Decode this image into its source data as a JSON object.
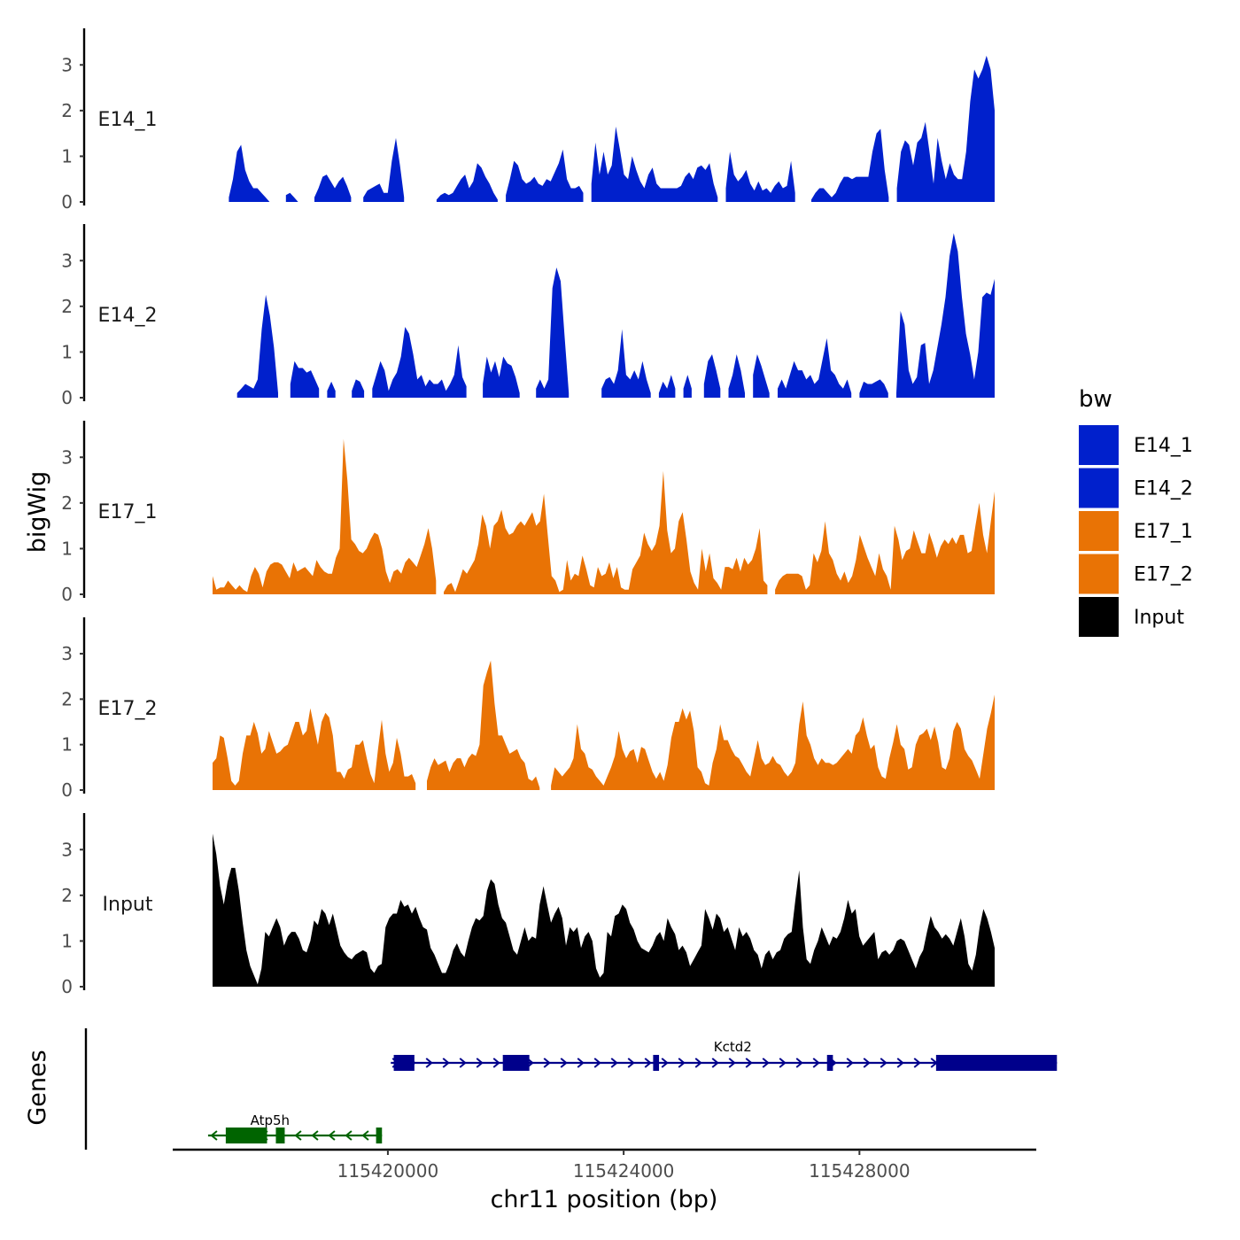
{
  "chart_data": {
    "type": "area",
    "x_axis": {
      "label": "chr11 position (bp)",
      "ticks": [
        115420000,
        115424000,
        115428000
      ],
      "tick_labels": [
        "115420000",
        "115424000",
        "115428000"
      ],
      "range": [
        115416350,
        115431000
      ],
      "data_range": [
        115417000,
        115430100
      ]
    },
    "y_axis": {
      "label": "bigWig",
      "range": [
        0,
        3.8
      ],
      "ticks": [
        0,
        1,
        2,
        3
      ],
      "tick_labels": [
        "0",
        "1",
        "2",
        "3"
      ]
    },
    "series": [
      {
        "name": "E14_1",
        "color": "#0020CC",
        "values": [
          null,
          null,
          null,
          null,
          0.1,
          0.5,
          1.1,
          1.25,
          0.7,
          0.45,
          0.3,
          0.3,
          0.2,
          0.1,
          0,
          null,
          null,
          null,
          0.15,
          0.2,
          0.1,
          0,
          null,
          null,
          null,
          0.1,
          0.3,
          0.55,
          0.6,
          0.45,
          0.3,
          0.45,
          0.55,
          0.35,
          0.1,
          null,
          null,
          0.1,
          0.25,
          0.3,
          0.35,
          0.4,
          0.2,
          0.2,
          0.9,
          1.4,
          0.8,
          0.1,
          null,
          null,
          null,
          null,
          null,
          null,
          null,
          0.05,
          0.15,
          0.2,
          0.15,
          0.2,
          0.35,
          0.5,
          0.6,
          0.3,
          0.45,
          0.85,
          0.75,
          0.55,
          0.4,
          0.2,
          0.05,
          null,
          0.15,
          0.5,
          0.9,
          0.8,
          0.5,
          0.4,
          0.45,
          0.55,
          0.4,
          0.35,
          0.5,
          0.45,
          0.65,
          0.85,
          1.15,
          0.5,
          0.3,
          0.3,
          0.35,
          0.2,
          null,
          0.4,
          1.3,
          0.6,
          1.1,
          0.6,
          0.8,
          1.65,
          1.15,
          0.6,
          0.5,
          1.0,
          0.7,
          0.45,
          0.3,
          0.6,
          0.75,
          0.4,
          0.3,
          0.3,
          0.3,
          0.3,
          0.3,
          0.35,
          0.55,
          0.65,
          0.5,
          0.75,
          0.8,
          0.7,
          0.85,
          0.4,
          0.1,
          null,
          0.3,
          1.1,
          0.6,
          0.45,
          0.55,
          0.7,
          0.4,
          0.25,
          0.45,
          0.25,
          0.3,
          0.2,
          0.35,
          0.45,
          0.3,
          0.35,
          0.9,
          0.2,
          null,
          null,
          null,
          0.05,
          0.2,
          0.3,
          0.3,
          0.2,
          0.1,
          0.2,
          0.4,
          0.55,
          0.55,
          0.5,
          0.55,
          0.55,
          0.55,
          0.55,
          1.1,
          1.5,
          1.6,
          0.7,
          0.1,
          null,
          0.3,
          1.1,
          1.35,
          1.25,
          0.8,
          1.3,
          1.4,
          1.75,
          1.1,
          0.4,
          1.4,
          0.9,
          0.5,
          0.85,
          0.6,
          0.5,
          0.5,
          1.1,
          2.2,
          2.9,
          2.7,
          2.9,
          3.2,
          2.9,
          2.0
        ]
      },
      {
        "name": "E14_2",
        "color": "#0020CC",
        "values": [
          null,
          null,
          null,
          null,
          null,
          null,
          0.1,
          0.2,
          0.3,
          0.25,
          0.2,
          0.4,
          1.5,
          2.25,
          1.8,
          1.1,
          0.1,
          null,
          null,
          0.3,
          0.8,
          0.65,
          0.65,
          0.55,
          0.6,
          0.4,
          0.2,
          null,
          0.15,
          0.35,
          0.15,
          null,
          null,
          null,
          0.15,
          0.4,
          0.35,
          0.15,
          null,
          0.2,
          0.5,
          0.8,
          0.6,
          0.15,
          0.4,
          0.55,
          0.9,
          1.55,
          1.4,
          0.95,
          0.4,
          0.5,
          0.25,
          0.4,
          0.3,
          0.3,
          0.4,
          0.15,
          0.3,
          0.5,
          1.15,
          0.45,
          0.25,
          null,
          null,
          null,
          0.3,
          0.9,
          0.55,
          0.8,
          0.45,
          0.9,
          0.75,
          0.7,
          0.45,
          0.1,
          null,
          null,
          null,
          0.2,
          0.4,
          0.2,
          0.4,
          2.4,
          2.85,
          2.55,
          1.3,
          0.1,
          null,
          null,
          null,
          null,
          null,
          null,
          null,
          0.2,
          0.4,
          0.45,
          0.3,
          0.6,
          1.5,
          0.5,
          0.4,
          0.6,
          0.4,
          0.8,
          0.4,
          0.1,
          null,
          0.1,
          0.35,
          0.2,
          0.5,
          0.2,
          null,
          0.2,
          0.5,
          0.2,
          null,
          null,
          0.3,
          0.8,
          0.95,
          0.6,
          0.2,
          null,
          0.2,
          0.5,
          0.95,
          0.6,
          0.1,
          null,
          0.5,
          0.95,
          0.7,
          0.4,
          0.1,
          null,
          0.2,
          0.4,
          0.2,
          0.5,
          0.8,
          0.6,
          0.6,
          0.4,
          0.5,
          0.3,
          0.4,
          0.85,
          1.3,
          0.6,
          0.5,
          0.3,
          0.2,
          0.4,
          0.1,
          null,
          0.1,
          0.35,
          0.3,
          0.3,
          0.35,
          0.4,
          0.3,
          0.1,
          null,
          0.1,
          1.9,
          1.6,
          0.6,
          0.3,
          0.45,
          1.15,
          1.2,
          0.3,
          0.6,
          1.1,
          1.6,
          2.2,
          3.1,
          3.6,
          3.2,
          2.2,
          1.4,
          0.95,
          0.4,
          1.0,
          2.2,
          2.3,
          2.25,
          2.6
        ]
      },
      {
        "name": "E17_1",
        "color": "#E97305",
        "values": [
          0.4,
          0.1,
          0.15,
          0.15,
          0.3,
          0.2,
          0.1,
          0.2,
          0.1,
          0.05,
          0.4,
          0.6,
          0.45,
          0.15,
          0.5,
          0.65,
          0.7,
          0.7,
          0.65,
          0.5,
          0.35,
          0.7,
          0.5,
          0.55,
          0.6,
          0.5,
          0.4,
          0.75,
          0.6,
          0.5,
          0.45,
          0.45,
          0.8,
          1.0,
          3.4,
          2.5,
          1.2,
          1.1,
          0.95,
          0.9,
          1.0,
          1.2,
          1.35,
          1.3,
          1.0,
          0.5,
          0.25,
          0.5,
          0.55,
          0.45,
          0.7,
          0.8,
          0.7,
          0.6,
          0.85,
          1.1,
          1.45,
          1.0,
          0.3,
          null,
          0.05,
          0.2,
          0.25,
          0.05,
          0.3,
          0.55,
          0.45,
          0.6,
          0.75,
          1.1,
          1.75,
          1.5,
          1.0,
          1.5,
          1.6,
          1.85,
          1.45,
          1.3,
          1.35,
          1.5,
          1.6,
          1.5,
          1.65,
          1.8,
          1.5,
          1.6,
          2.2,
          1.3,
          0.4,
          0.3,
          0.05,
          0.1,
          0.75,
          0.3,
          0.45,
          0.4,
          0.85,
          0.55,
          0.2,
          0.15,
          0.6,
          0.4,
          0.45,
          0.7,
          0.35,
          0.6,
          0.15,
          0.1,
          0.1,
          0.55,
          0.7,
          0.85,
          1.35,
          1.1,
          0.95,
          1.1,
          1.5,
          2.7,
          1.4,
          0.9,
          1.0,
          1.6,
          1.8,
          1.2,
          0.5,
          0.25,
          0.1,
          1.0,
          0.5,
          0.9,
          0.35,
          0.25,
          0.1,
          0.6,
          0.6,
          0.55,
          0.8,
          0.5,
          0.8,
          0.65,
          0.75,
          1.0,
          1.45,
          0.3,
          0.2,
          null,
          0.1,
          0.3,
          0.4,
          0.45,
          0.45,
          0.45,
          0.45,
          0.4,
          0.1,
          0.2,
          0.9,
          0.7,
          0.95,
          1.6,
          0.9,
          0.75,
          0.45,
          0.3,
          0.5,
          0.25,
          0.4,
          0.75,
          1.3,
          1.05,
          0.8,
          0.6,
          0.4,
          0.9,
          0.55,
          0.4,
          0.1,
          1.5,
          1.2,
          0.75,
          0.95,
          1.0,
          1.4,
          1.15,
          0.9,
          0.9,
          1.35,
          1.1,
          0.8,
          1.05,
          1.2,
          1.1,
          1.25,
          1.1,
          1.3,
          1.3,
          0.9,
          0.95,
          1.5,
          2.0,
          1.3,
          0.9,
          1.6,
          2.25
        ]
      },
      {
        "name": "E17_2",
        "color": "#E97305",
        "values": [
          0.6,
          0.7,
          1.2,
          1.15,
          0.7,
          0.2,
          0.1,
          0.2,
          0.8,
          1.2,
          1.2,
          1.5,
          1.25,
          0.8,
          0.9,
          1.3,
          1.05,
          0.8,
          0.85,
          0.95,
          1.0,
          1.25,
          1.5,
          1.5,
          1.2,
          1.3,
          1.8,
          1.4,
          1.0,
          1.5,
          1.7,
          1.6,
          1.2,
          0.4,
          0.4,
          0.25,
          0.45,
          0.5,
          1.0,
          1.0,
          1.1,
          0.7,
          0.35,
          0.15,
          0.9,
          1.55,
          0.8,
          0.4,
          0.6,
          1.15,
          0.8,
          0.3,
          0.3,
          0.35,
          0.15,
          null,
          null,
          0.2,
          0.5,
          0.7,
          0.55,
          0.6,
          0.65,
          0.4,
          0.6,
          0.7,
          0.7,
          0.5,
          0.7,
          0.8,
          0.75,
          1.0,
          2.3,
          2.6,
          2.85,
          1.9,
          1.2,
          1.2,
          1.0,
          0.8,
          0.85,
          0.9,
          0.7,
          0.6,
          0.25,
          0.2,
          0.3,
          0.05,
          null,
          null,
          0.1,
          0.5,
          0.4,
          0.3,
          0.4,
          0.5,
          0.7,
          1.45,
          0.9,
          0.8,
          0.5,
          0.45,
          0.3,
          0.2,
          0.1,
          0.3,
          0.5,
          0.75,
          1.3,
          0.9,
          0.7,
          0.85,
          0.9,
          0.6,
          0.95,
          0.9,
          0.65,
          0.4,
          0.25,
          0.4,
          0.2,
          0.55,
          1.15,
          1.5,
          1.5,
          1.8,
          1.55,
          1.75,
          1.3,
          0.5,
          0.4,
          0.15,
          0.1,
          0.6,
          0.9,
          1.45,
          1.1,
          1.1,
          0.9,
          0.75,
          0.7,
          0.55,
          0.4,
          0.3,
          0.7,
          1.1,
          0.7,
          0.55,
          0.6,
          0.75,
          0.6,
          0.55,
          0.4,
          0.3,
          0.4,
          0.6,
          1.45,
          1.95,
          1.2,
          1.0,
          0.7,
          0.55,
          0.7,
          0.6,
          0.6,
          0.55,
          0.6,
          0.7,
          0.8,
          0.9,
          0.8,
          1.2,
          1.3,
          1.6,
          1.2,
          0.9,
          1.0,
          0.5,
          0.3,
          0.25,
          0.7,
          1.05,
          1.45,
          1.0,
          0.9,
          0.45,
          0.5,
          1.0,
          1.2,
          1.25,
          1.35,
          1.1,
          1.4,
          1.05,
          0.5,
          0.45,
          0.7,
          1.3,
          1.5,
          1.35,
          0.9,
          0.75,
          0.65,
          0.45,
          0.25,
          0.8,
          1.35,
          1.7,
          2.1
        ]
      },
      {
        "name": "Input",
        "color": "#000000",
        "values": [
          3.35,
          2.9,
          2.2,
          1.8,
          2.3,
          2.6,
          2.6,
          2.1,
          1.4,
          0.8,
          0.45,
          0.25,
          0.05,
          0.4,
          1.2,
          1.1,
          1.3,
          1.5,
          1.3,
          0.9,
          1.1,
          1.2,
          1.2,
          1.05,
          0.8,
          0.75,
          1.0,
          1.45,
          1.35,
          1.7,
          1.6,
          1.35,
          1.6,
          1.25,
          0.9,
          0.75,
          0.65,
          0.6,
          0.7,
          0.75,
          0.8,
          0.75,
          0.4,
          0.3,
          0.45,
          0.5,
          1.3,
          1.5,
          1.6,
          1.6,
          1.9,
          1.75,
          1.8,
          1.6,
          1.75,
          1.5,
          1.3,
          1.25,
          0.85,
          0.7,
          0.5,
          0.3,
          0.3,
          0.5,
          0.8,
          0.95,
          0.75,
          0.65,
          1.0,
          1.3,
          1.5,
          1.45,
          1.55,
          2.1,
          2.35,
          2.25,
          1.8,
          1.5,
          1.4,
          1.1,
          0.8,
          0.7,
          1.0,
          1.3,
          1.0,
          1.1,
          1.05,
          1.8,
          2.2,
          1.8,
          1.4,
          1.6,
          1.75,
          1.5,
          0.9,
          1.3,
          1.2,
          1.3,
          0.85,
          1.1,
          1.2,
          1.0,
          0.4,
          0.2,
          0.3,
          1.2,
          1.1,
          1.55,
          1.6,
          1.8,
          1.7,
          1.4,
          1.25,
          1.0,
          0.85,
          0.8,
          0.75,
          0.9,
          1.1,
          1.2,
          1.0,
          1.5,
          1.3,
          1.15,
          0.8,
          0.9,
          0.75,
          0.45,
          0.6,
          0.75,
          0.9,
          1.7,
          1.5,
          1.25,
          1.6,
          1.5,
          1.2,
          1.3,
          1.05,
          0.8,
          1.3,
          1.1,
          1.2,
          1.05,
          0.8,
          0.7,
          0.4,
          0.7,
          0.8,
          0.6,
          0.75,
          0.8,
          1.05,
          1.15,
          1.2,
          1.9,
          2.55,
          1.3,
          0.6,
          0.5,
          0.8,
          1.0,
          1.3,
          1.1,
          0.9,
          1.1,
          1.05,
          1.2,
          1.5,
          1.9,
          1.6,
          1.7,
          1.1,
          0.9,
          1.0,
          1.1,
          1.2,
          0.6,
          0.75,
          0.8,
          0.7,
          0.8,
          1.0,
          1.05,
          1.0,
          0.8,
          0.6,
          0.4,
          0.65,
          0.8,
          1.2,
          1.55,
          1.3,
          1.2,
          1.05,
          1.15,
          1.05,
          0.9,
          1.2,
          1.5,
          1.1,
          0.5,
          0.35,
          0.7,
          1.3,
          1.7,
          1.5,
          1.2,
          0.85
        ]
      }
    ],
    "legend": {
      "title": "bw",
      "position": "right",
      "entries": [
        {
          "label": "E14_1",
          "color": "#0020CC"
        },
        {
          "label": "E14_2",
          "color": "#0020CC"
        },
        {
          "label": "E17_1",
          "color": "#E97305"
        },
        {
          "label": "E17_2",
          "color": "#E97305"
        },
        {
          "label": "Input",
          "color": "#000000"
        }
      ]
    },
    "gene_track": {
      "label": "Genes",
      "genes": [
        {
          "name": "Kctd2",
          "color": "#00008B",
          "strand": "+",
          "start": 115420050,
          "end": 115431350,
          "exons": [
            [
              115420100,
              115420450
            ],
            [
              115421950,
              115422400
            ],
            [
              115424500,
              115424600
            ],
            [
              115427450,
              115427550
            ],
            [
              115429300,
              115431350
            ]
          ]
        },
        {
          "name": "Atp5h",
          "color": "#006400",
          "strand": "-",
          "start": 115416950,
          "end": 115419900,
          "exons": [
            [
              115417250,
              115417950
            ],
            [
              115418100,
              115418250
            ],
            [
              115419800,
              115419900
            ]
          ]
        }
      ]
    }
  }
}
